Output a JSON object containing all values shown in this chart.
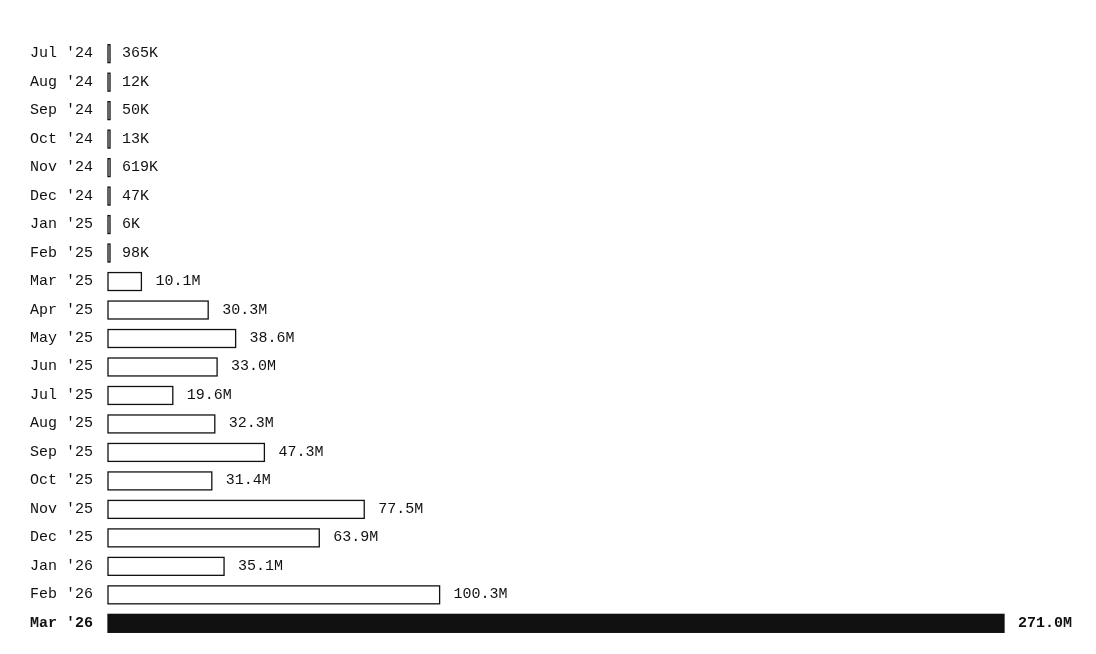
{
  "chart_data": {
    "type": "bar",
    "orientation": "horizontal",
    "relative": false,
    "categories": [
      "Jul '24",
      "Aug '24",
      "Sep '24",
      "Oct '24",
      "Nov '24",
      "Dec '24",
      "Jan '25",
      "Feb '25",
      "Mar '25",
      "Apr '25",
      "May '25",
      "Jun '25",
      "Jul '25",
      "Aug '25",
      "Sep '25",
      "Oct '25",
      "Nov '25",
      "Dec '25",
      "Jan '26",
      "Feb '26",
      "Mar '26"
    ],
    "values": [
      365000,
      12000,
      50000,
      13000,
      619000,
      47000,
      6000,
      98000,
      10100000,
      30300000,
      38600000,
      33000000,
      19600000,
      32300000,
      47300000,
      31400000,
      77500000,
      63900000,
      35100000,
      100300000,
      271000000
    ],
    "value_labels": [
      "365K",
      "12K",
      "50K",
      "13K",
      "619K",
      "47K",
      "6K",
      "98K",
      "10.1M",
      "30.3M",
      "38.6M",
      "33.0M",
      "19.6M",
      "32.3M",
      "47.3M",
      "31.4M",
      "77.5M",
      "63.9M",
      "35.1M",
      "100.3M",
      "271.0M"
    ],
    "colors": [
      "#ffffff",
      "#ffffff",
      "#ffffff",
      "#ffffff",
      "#ffffff",
      "#ffffff",
      "#ffffff",
      "#ffffff",
      "#ffffff",
      "#ffffff",
      "#ffffff",
      "#ffffff",
      "#ffffff",
      "#ffffff",
      "#ffffff",
      "#ffffff",
      "#ffffff",
      "#ffffff",
      "#ffffff",
      "#ffffff",
      "#111111"
    ]
  }
}
